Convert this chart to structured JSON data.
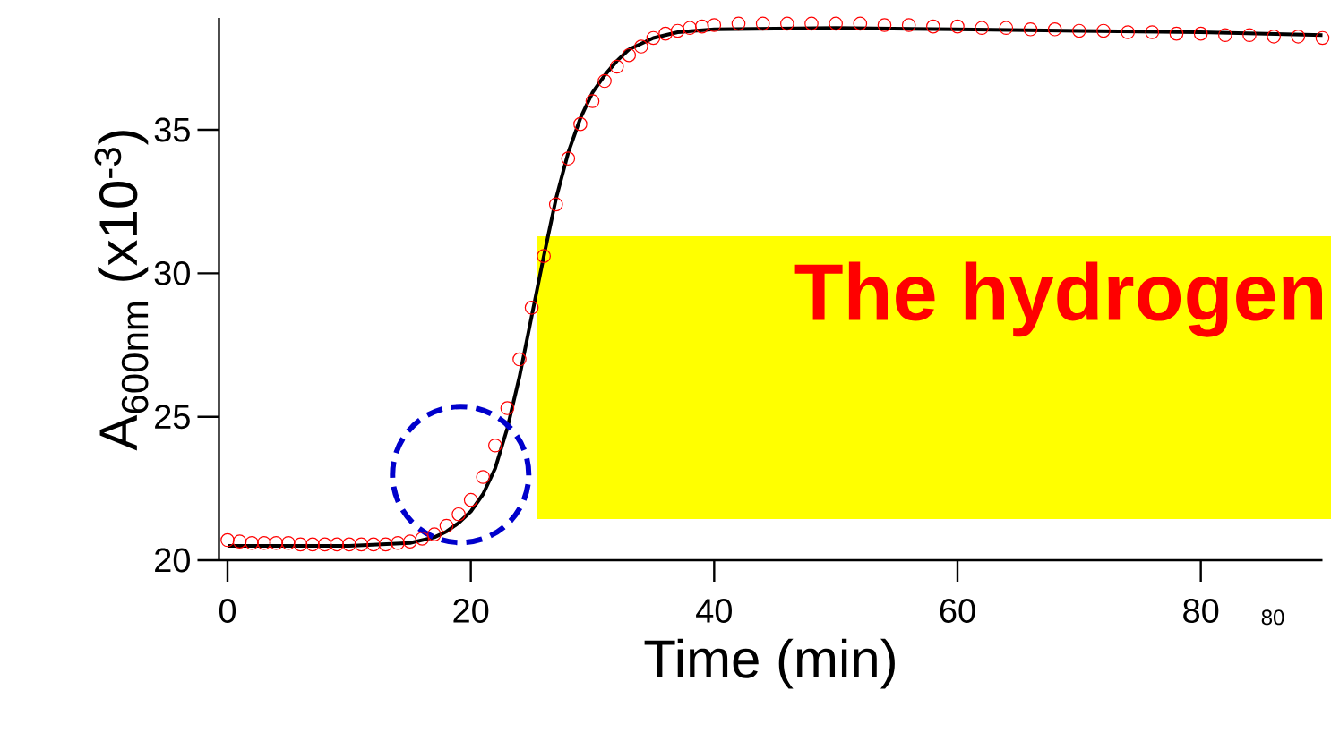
{
  "chart_data": {
    "type": "scatter",
    "xlabel": "Time (min)",
    "ylabel": "A$_{600nm}$ (x10$^{-3}$)",
    "xlim": [
      -0.7,
      90
    ],
    "ylim": [
      20,
      38.9
    ],
    "xticks": [
      0,
      20,
      40,
      60,
      80
    ],
    "yticks": [
      20,
      25,
      30,
      35
    ],
    "annotations": [
      "The hydrogen",
      "80"
    ],
    "series": [
      {
        "type": "scatter",
        "marker": "circle",
        "color": "#ff0000",
        "x": [
          0,
          1,
          2,
          3,
          4,
          5,
          6,
          7,
          8,
          9,
          10,
          11,
          12,
          13,
          14,
          15,
          16,
          17,
          18,
          19,
          20,
          21,
          22,
          23,
          24,
          25,
          26,
          27,
          28,
          29,
          30,
          31,
          32,
          33,
          34,
          35,
          36,
          37,
          38,
          39,
          40,
          42,
          44,
          46,
          48,
          50,
          52,
          54,
          56,
          58,
          60,
          62,
          64,
          66,
          68,
          70,
          72,
          74,
          76,
          78,
          80,
          82,
          84,
          86,
          88,
          90
        ],
        "values": [
          20.7,
          20.65,
          20.6,
          20.6,
          20.6,
          20.6,
          20.55,
          20.55,
          20.55,
          20.55,
          20.55,
          20.55,
          20.55,
          20.55,
          20.6,
          20.65,
          20.75,
          20.9,
          21.2,
          21.6,
          22.1,
          22.9,
          24.0,
          25.3,
          27.0,
          28.8,
          30.6,
          32.4,
          34.0,
          35.2,
          36.0,
          36.7,
          37.2,
          37.6,
          37.9,
          38.2,
          38.35,
          38.45,
          38.55,
          38.6,
          38.65,
          38.7,
          38.7,
          38.7,
          38.7,
          38.7,
          38.7,
          38.65,
          38.65,
          38.6,
          38.6,
          38.55,
          38.55,
          38.5,
          38.5,
          38.45,
          38.45,
          38.4,
          38.4,
          38.35,
          38.35,
          38.3,
          38.3,
          38.25,
          38.25,
          38.2
        ]
      },
      {
        "type": "line",
        "color": "#000000",
        "x": [
          0,
          5,
          10,
          15,
          17,
          18,
          19,
          20,
          21,
          22,
          23,
          24,
          25,
          26,
          27,
          28,
          29,
          30,
          31,
          32,
          33,
          35,
          37,
          40,
          50,
          60,
          70,
          80,
          90
        ],
        "values": [
          20.5,
          20.5,
          20.5,
          20.6,
          20.8,
          21.0,
          21.3,
          21.7,
          22.3,
          23.2,
          24.6,
          26.4,
          28.5,
          30.6,
          32.6,
          34.2,
          35.4,
          36.3,
          36.9,
          37.4,
          37.8,
          38.2,
          38.4,
          38.5,
          38.55,
          38.5,
          38.45,
          38.4,
          38.3
        ]
      }
    ]
  }
}
